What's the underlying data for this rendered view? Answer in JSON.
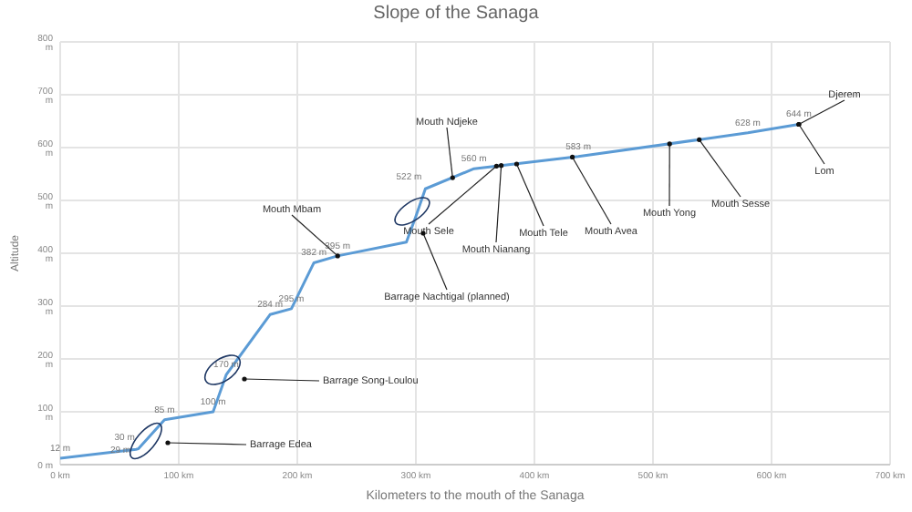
{
  "chart_data": {
    "type": "line",
    "title": "Slope of the Sanaga",
    "xlabel": "Kilometers to the mouth of the Sanaga",
    "ylabel": "Altitude",
    "x": [
      0,
      64,
      66,
      88,
      129,
      140,
      177,
      195,
      214,
      234,
      292,
      300,
      308,
      349,
      437,
      580,
      623
    ],
    "series": [
      {
        "color": "#5b9bd5",
        "values": [
          12,
          29,
          30,
          85,
          100,
          170,
          284,
          295,
          382,
          395,
          421,
          470,
          522,
          560,
          583,
          628,
          644
        ],
        "value_labels": [
          "12 m",
          "29 m",
          "30 m",
          "85 m",
          "100 m",
          "170 m",
          "284 m",
          "295 m",
          "382 m",
          "395 m",
          null,
          null,
          "522 m",
          "560 m",
          "583 m",
          "628 m",
          "644 m"
        ]
      }
    ],
    "xlim": [
      0,
      700
    ],
    "xticks": [
      {
        "value": 0,
        "label": "0 km"
      },
      {
        "value": 100,
        "label": "100 km"
      },
      {
        "value": 200,
        "label": "200 km"
      },
      {
        "value": 300,
        "label": "300 km"
      },
      {
        "value": 400,
        "label": "400 km"
      },
      {
        "value": 500,
        "label": "500 km"
      },
      {
        "value": 600,
        "label": "600 km"
      },
      {
        "value": 700,
        "label": "700 km"
      }
    ],
    "ylim": [
      0,
      800
    ],
    "yticks": [
      {
        "value": 0,
        "label": "0 m"
      },
      {
        "value": 100,
        "label": "100 m"
      },
      {
        "value": 200,
        "label": "200 m"
      },
      {
        "value": 300,
        "label": "300 m"
      },
      {
        "value": 400,
        "label": "400 m"
      },
      {
        "value": 500,
        "label": "500 m"
      },
      {
        "value": 600,
        "label": "600 m"
      },
      {
        "value": 700,
        "label": "700 m"
      },
      {
        "value": 800,
        "label": "800 m"
      }
    ],
    "grid": true,
    "legend": false,
    "marker": "none",
    "line_style": "solid",
    "annotations": [
      {
        "text": "Mouth Ndjeke",
        "x": 331,
        "y": 543
      },
      {
        "text": "Mouth Sele",
        "x": 368,
        "y": 565
      },
      {
        "text": "Mouth Nianang",
        "x": 372,
        "y": 566
      },
      {
        "text": "Mouth Tele",
        "x": 385,
        "y": 569
      },
      {
        "text": "Mouth Avea",
        "x": 432,
        "y": 582
      },
      {
        "text": "Mouth Yong",
        "x": 514,
        "y": 607
      },
      {
        "text": "Mouth Sesse",
        "x": 539,
        "y": 615
      },
      {
        "text": "Djerem",
        "x": 623,
        "y": 644
      },
      {
        "text": "Lom",
        "x": 623,
        "y": 644
      },
      {
        "text": "Mouth Mbam",
        "x": 234,
        "y": 395
      },
      "Barrage Nachtigal (planned)",
      "Barrage Song-Loulou",
      "Barrage Edea"
    ]
  }
}
